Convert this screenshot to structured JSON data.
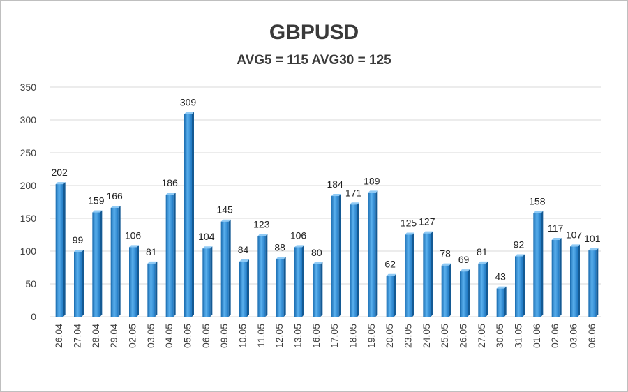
{
  "chart_data": {
    "type": "bar",
    "title": "GBPUSD",
    "subtitle": "AVG5 = 115 AVG30 = 125",
    "xlabel": "",
    "ylabel": "",
    "ylim": [
      0,
      350
    ],
    "yticks": [
      0,
      50,
      100,
      150,
      200,
      250,
      300,
      350
    ],
    "grid": true,
    "categories": [
      "26.04",
      "27.04",
      "28.04",
      "29.04",
      "02.05",
      "03.05",
      "04.05",
      "05.05",
      "06.05",
      "09.05",
      "10.05",
      "11.05",
      "12.05",
      "13.05",
      "16.05",
      "17.05",
      "18.05",
      "19.05",
      "20.05",
      "23.05",
      "24.05",
      "25.05",
      "26.05",
      "27.05",
      "30.05",
      "31.05",
      "01.06",
      "02.06",
      "03.06",
      "06.06"
    ],
    "values": [
      202,
      99,
      159,
      166,
      106,
      81,
      186,
      309,
      104,
      145,
      84,
      123,
      88,
      106,
      80,
      184,
      171,
      189,
      62,
      125,
      127,
      78,
      69,
      81,
      43,
      92,
      158,
      117,
      107,
      101
    ],
    "colors": {
      "bar_light": "#5ab0ee",
      "bar_dark": "#1a6cb0",
      "grid": "#d9d9d9"
    }
  }
}
